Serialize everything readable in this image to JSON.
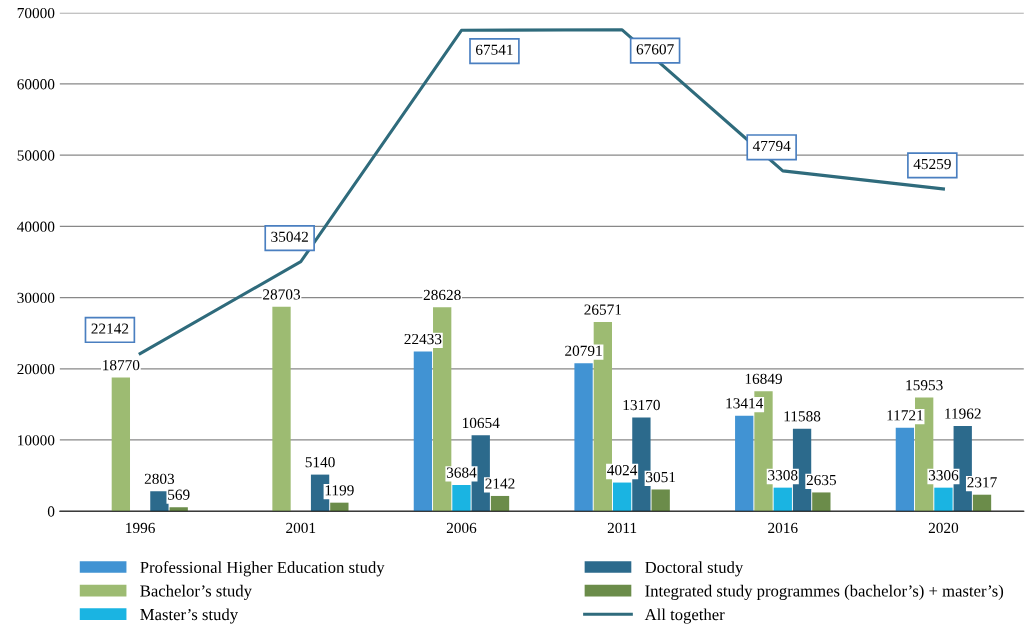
{
  "chart_data": {
    "type": "bar",
    "categories": [
      "1996",
      "2001",
      "2006",
      "2011",
      "2016",
      "2020"
    ],
    "series": [
      {
        "name": "Professional Higher Education study",
        "color": "#4193d3",
        "values": [
          null,
          null,
          22433,
          20791,
          13414,
          11721
        ]
      },
      {
        "name": "Bachelor’s study",
        "color": "#9dbb72",
        "values": [
          18770,
          28703,
          28628,
          26571,
          16849,
          15953
        ]
      },
      {
        "name": "Master’s study",
        "color": "#1ab4e2",
        "values": [
          null,
          null,
          3684,
          4024,
          3308,
          3306
        ]
      },
      {
        "name": "Doctoral study",
        "color": "#2c6a8c",
        "values": [
          2803,
          5140,
          10654,
          13170,
          11588,
          11962
        ]
      },
      {
        "name": "Integrated study programmes (bachelor’s) + master’s)",
        "color": "#6b8c4a",
        "values": [
          569,
          1199,
          2142,
          3051,
          2635,
          2317
        ]
      },
      {
        "name": "All together",
        "type": "line",
        "color": "#2f6b7c",
        "values": [
          22142,
          35042,
          67541,
          67607,
          47794,
          45259
        ]
      }
    ],
    "ylim": [
      0,
      70000
    ],
    "yticks": [
      0,
      10000,
      20000,
      30000,
      40000,
      50000,
      60000,
      70000
    ],
    "grid": "y",
    "legend": "bottom",
    "data_labels": true
  }
}
